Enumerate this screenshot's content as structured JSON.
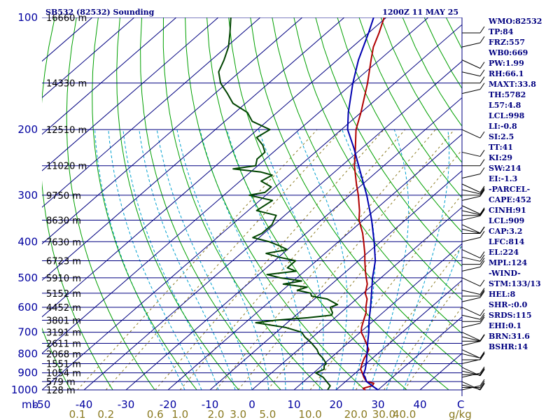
{
  "header": {
    "title": "SB532 (82532) Sounding",
    "timestamp": "1200Z 11 MAY 25"
  },
  "colors": {
    "isobar": "#000080",
    "isotherm": "#000080",
    "dry_adiabat": "#00a000",
    "moist_adiabat": "#00a0d0",
    "mixing_ratio": "#8a7a20",
    "temperature": "#b00000",
    "dewpoint": "#004400",
    "parcel": "#0000b0",
    "wind": "#000000"
  },
  "chart_data": {
    "type": "line",
    "diagram": "skew-t log-p",
    "title": "SB532 (82532) Sounding",
    "subtitle": "1200Z 11 MAY 25",
    "y_axis": {
      "unit": "mb",
      "scale": "log",
      "ylim": [
        1000,
        100
      ],
      "ticks": [
        100,
        200,
        300,
        400,
        500,
        600,
        700,
        800,
        900,
        1000
      ]
    },
    "x_axis": {
      "unit": "C",
      "xlim": [
        -50,
        50
      ],
      "ticks": [
        -50,
        -40,
        -30,
        -20,
        -10,
        0,
        10,
        20,
        30,
        40
      ]
    },
    "mixing_ratio_axis": {
      "unit": "g/kg",
      "ticks": [
        "0.1",
        "0.2",
        "0.6",
        "1.0",
        "2.0",
        "3.0",
        "5.0",
        "10.0",
        "20.0",
        "30.0",
        "40.0"
      ]
    },
    "height_labels": [
      {
        "p": 100,
        "label": "16660 m"
      },
      {
        "p": 150,
        "label": "14330 m"
      },
      {
        "p": 200,
        "label": "12510 m"
      },
      {
        "p": 250,
        "label": "11020 m"
      },
      {
        "p": 300,
        "label": "9750 m"
      },
      {
        "p": 350,
        "label": "8630 m"
      },
      {
        "p": 400,
        "label": "7630 m"
      },
      {
        "p": 450,
        "label": "6723 m"
      },
      {
        "p": 500,
        "label": "5910 m"
      },
      {
        "p": 550,
        "label": "5152 m"
      },
      {
        "p": 600,
        "label": "4452 m"
      },
      {
        "p": 650,
        "label": "3801 m"
      },
      {
        "p": 700,
        "label": "3191 m"
      },
      {
        "p": 750,
        "label": "2611 m"
      },
      {
        "p": 800,
        "label": "2068 m"
      },
      {
        "p": 850,
        "label": "1551 m"
      },
      {
        "p": 900,
        "label": "1054 m"
      },
      {
        "p": 950,
        "label": "579 m"
      },
      {
        "p": 1000,
        "label": "128 m"
      }
    ],
    "series": [
      {
        "key": "temperature",
        "points": [
          [
            1000,
            27.0
          ],
          [
            990,
            26.0
          ],
          [
            975,
            27.5
          ],
          [
            960,
            27.2
          ],
          [
            950,
            25.0
          ],
          [
            925,
            23.2
          ],
          [
            900,
            21.6
          ],
          [
            880,
            20.2
          ],
          [
            850,
            19.0
          ],
          [
            820,
            18.0
          ],
          [
            800,
            17.5
          ],
          [
            780,
            16.8
          ],
          [
            750,
            14.5
          ],
          [
            720,
            12.0
          ],
          [
            700,
            10.2
          ],
          [
            680,
            9.0
          ],
          [
            650,
            7.5
          ],
          [
            620,
            6.0
          ],
          [
            600,
            4.5
          ],
          [
            570,
            2.5
          ],
          [
            550,
            0.5
          ],
          [
            520,
            -1.5
          ],
          [
            500,
            -3.5
          ],
          [
            480,
            -5.5
          ],
          [
            450,
            -8.5
          ],
          [
            430,
            -10.5
          ],
          [
            400,
            -14.0
          ],
          [
            380,
            -16.5
          ],
          [
            350,
            -21.0
          ],
          [
            330,
            -23.5
          ],
          [
            300,
            -28.0
          ],
          [
            280,
            -31.5
          ],
          [
            250,
            -37.0
          ],
          [
            230,
            -40.5
          ],
          [
            200,
            -46.5
          ],
          [
            180,
            -50.0
          ],
          [
            150,
            -56.5
          ],
          [
            130,
            -62.0
          ],
          [
            120,
            -65.0
          ],
          [
            110,
            -67.5
          ],
          [
            100,
            -70.5
          ]
        ]
      },
      {
        "key": "dewpoint",
        "points": [
          [
            1000,
            18.0
          ],
          [
            975,
            17.5
          ],
          [
            950,
            15.5
          ],
          [
            925,
            13.5
          ],
          [
            900,
            10.5
          ],
          [
            880,
            11.5
          ],
          [
            860,
            10.5
          ],
          [
            850,
            10.5
          ],
          [
            820,
            8.0
          ],
          [
            800,
            6.0
          ],
          [
            780,
            4.5
          ],
          [
            750,
            1.5
          ],
          [
            720,
            -2.0
          ],
          [
            700,
            -4.0
          ],
          [
            680,
            -9.0
          ],
          [
            660,
            -17.5
          ],
          [
            650,
            -13.5
          ],
          [
            640,
            -6.5
          ],
          [
            630,
            -1.5
          ],
          [
            620,
            -2.0
          ],
          [
            600,
            -4.0
          ],
          [
            590,
            -3.0
          ],
          [
            570,
            -7.0
          ],
          [
            560,
            -11.5
          ],
          [
            550,
            -12.5
          ],
          [
            540,
            -16.5
          ],
          [
            530,
            -15.0
          ],
          [
            520,
            -21.5
          ],
          [
            510,
            -18.0
          ],
          [
            500,
            -24.0
          ],
          [
            490,
            -28.0
          ],
          [
            480,
            -22.0
          ],
          [
            470,
            -25.0
          ],
          [
            450,
            -25.0
          ],
          [
            440,
            -30.0
          ],
          [
            430,
            -34.0
          ],
          [
            420,
            -30.0
          ],
          [
            410,
            -33.0
          ],
          [
            400,
            -36.5
          ],
          [
            390,
            -41.5
          ],
          [
            380,
            -40.5
          ],
          [
            360,
            -40.5
          ],
          [
            340,
            -42.0
          ],
          [
            330,
            -48.0
          ],
          [
            310,
            -47.0
          ],
          [
            300,
            -54.0
          ],
          [
            295,
            -51.0
          ],
          [
            285,
            -51.0
          ],
          [
            275,
            -55.0
          ],
          [
            265,
            -54.0
          ],
          [
            260,
            -57.5
          ],
          [
            255,
            -65.0
          ],
          [
            250,
            -60.5
          ],
          [
            240,
            -62.0
          ],
          [
            230,
            -62.0
          ],
          [
            220,
            -64.5
          ],
          [
            210,
            -68.0
          ],
          [
            200,
            -67.0
          ],
          [
            190,
            -73.5
          ],
          [
            180,
            -77.0
          ],
          [
            170,
            -83.0
          ],
          [
            160,
            -87.0
          ],
          [
            150,
            -91.5
          ],
          [
            140,
            -95.0
          ],
          [
            130,
            -97.0
          ],
          [
            120,
            -99.5
          ],
          [
            110,
            -103.0
          ],
          [
            100,
            -107.0
          ]
        ]
      },
      {
        "key": "parcel",
        "points": [
          [
            1000,
            30.0
          ],
          [
            975,
            27.5
          ],
          [
            950,
            25.0
          ],
          [
            925,
            23.5
          ],
          [
            909,
            22.3
          ],
          [
            880,
            21.3
          ],
          [
            850,
            20.0
          ],
          [
            800,
            17.5
          ],
          [
            750,
            14.8
          ],
          [
            700,
            12.0
          ],
          [
            650,
            8.8
          ],
          [
            600,
            5.6
          ],
          [
            550,
            2.0
          ],
          [
            500,
            -2.0
          ],
          [
            450,
            -6.0
          ],
          [
            400,
            -11.5
          ],
          [
            350,
            -18.0
          ],
          [
            300,
            -26.0
          ],
          [
            250,
            -36.0
          ],
          [
            224,
            -42.0
          ],
          [
            200,
            -48.5
          ],
          [
            180,
            -53.0
          ],
          [
            150,
            -60.0
          ],
          [
            130,
            -65.0
          ],
          [
            110,
            -70.0
          ],
          [
            100,
            -73.0
          ]
        ]
      }
    ],
    "wind_barbs_pressures": [
      1000,
      985,
      970,
      950,
      925,
      910,
      890,
      870,
      850,
      830,
      800,
      780,
      760,
      740,
      720,
      700,
      680,
      655,
      630,
      600,
      580,
      560,
      540,
      500,
      480,
      460,
      440,
      420,
      400,
      380,
      370,
      360,
      350,
      340,
      330,
      320,
      310,
      300,
      290,
      280,
      270,
      250,
      230,
      200,
      160,
      150,
      140,
      130,
      120,
      110
    ],
    "indices": [
      "WMO:82532",
      "TP:84",
      "FRZ:557",
      "WB0:669",
      "PW:1.99",
      "RH:66.1",
      "MAXT:33.8",
      "TH:5782",
      "L57:4.8",
      "LCL:998",
      "LI:-0.8",
      "SI:2.5",
      "TT:41",
      "KI:29",
      "SW:214",
      "EI:-1.3",
      "-PARCEL-",
      "CAPE:452",
      "CINH:91",
      "LCL:909",
      "CAP:3.2",
      "LFC:814",
      "EL:224",
      "MPL:124",
      "-WIND-",
      "STM:133/13",
      "HEL:8",
      "SHR-:0.0",
      "SRDS:115",
      "EHI:0.1",
      "BRN:31.6",
      "BSHR:14"
    ]
  }
}
